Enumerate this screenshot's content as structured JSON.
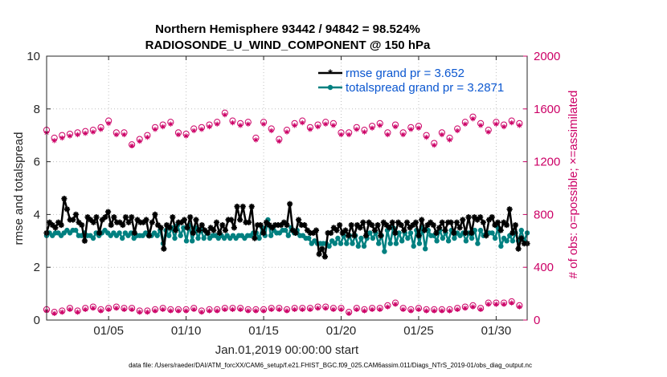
{
  "chart_data": {
    "type": "line",
    "title_line1": "Northern Hemisphere 93442 / 94842 = 98.524%",
    "title_line2": "RADIOSONDE_U_WIND_COMPONENT @ 150 hPa",
    "xlabel": "Jan.01,2019 00:00:00 start",
    "ylabel": "rmse and totalspread",
    "ylabel_right": "# of obs: o=possible; ×=assimilated",
    "xlim": [
      1,
      32
    ],
    "ylim": [
      0,
      10
    ],
    "ylim_right": [
      0,
      2000
    ],
    "x_ticks": [
      5,
      10,
      15,
      20,
      25,
      30
    ],
    "x_tick_labels": [
      "01/05",
      "01/10",
      "01/15",
      "01/20",
      "01/25",
      "01/30"
    ],
    "y_ticks": [
      "0",
      "2",
      "4",
      "6",
      "8",
      "10"
    ],
    "y_right_ticks": [
      "0",
      "400",
      "800",
      "1200",
      "1600",
      "2000"
    ],
    "colors": {
      "rmse": "#000000",
      "spread": "#008080",
      "obs": "#cc0066",
      "legend_text": "#0b57d0"
    },
    "legend": [
      {
        "name": "rmse",
        "label": "rmse grand pr = 3.652"
      },
      {
        "name": "spread",
        "label": "totalspread grand pr = 3.2871"
      }
    ],
    "series": [
      {
        "name": "rmse",
        "values": [
          3.3,
          3.7,
          3.6,
          3.5,
          3.7,
          3.6,
          4.6,
          4.2,
          3.8,
          3.8,
          4.0,
          3.7,
          3.6,
          3.0,
          3.9,
          3.8,
          3.7,
          3.9,
          3.3,
          3.8,
          3.9,
          4.1,
          3.6,
          3.9,
          3.7,
          3.7,
          3.6,
          3.9,
          3.7,
          3.9,
          3.3,
          3.8,
          3.7,
          3.7,
          3.8,
          3.2,
          3.7,
          4.0,
          3.6,
          3.5,
          2.7,
          3.6,
          3.5,
          3.9,
          3.4,
          3.7,
          3.7,
          3.8,
          3.5,
          3.9,
          3.3,
          3.8,
          3.4,
          3.6,
          3.4,
          3.3,
          3.5,
          3.4,
          3.7,
          3.3,
          3.6,
          3.4,
          3.8,
          3.8,
          3.5,
          4.3,
          3.8,
          4.3,
          3.7,
          3.7,
          4.3,
          3.1,
          3.6,
          3.6,
          3.3,
          3.7,
          3.6,
          3.5,
          3.6,
          3.6,
          3.6,
          3.7,
          3.6,
          4.4,
          3.4,
          3.3,
          3.8,
          3.6,
          3.6,
          3.4,
          3.3,
          3.3,
          3.4,
          2.5,
          2.7,
          2.4,
          3.3,
          3.3,
          3.5,
          3.4,
          3.6,
          3.3,
          3.4,
          3.2,
          3.6,
          3.2,
          3.6,
          3.5,
          3.7,
          3.2,
          3.7,
          3.6,
          3.4,
          3.6,
          3.2,
          3.7,
          3.6,
          3.5,
          3.7,
          3.3,
          3.7,
          3.6,
          3.4,
          3.7,
          3.5,
          3.6,
          3.7,
          3.2,
          3.8,
          3.4,
          3.6,
          3.7,
          3.6,
          3.3,
          3.5,
          3.7,
          3.4,
          3.7,
          3.7,
          3.3,
          3.7,
          3.5,
          3.8,
          3.3,
          3.9,
          3.3,
          3.9,
          3.8,
          3.9,
          3.7,
          3.2,
          3.8,
          3.9,
          3.6,
          3.7,
          3.4,
          3.7,
          3.6,
          4.2,
          3.3,
          3.6,
          2.7,
          3.1,
          2.9,
          2.9
        ]
      },
      {
        "name": "spread",
        "values": [
          3.2,
          3.3,
          3.2,
          3.3,
          3.3,
          3.2,
          3.3,
          3.4,
          3.3,
          3.4,
          3.4,
          3.2,
          3.2,
          3.3,
          3.2,
          3.2,
          3.1,
          3.3,
          3.2,
          3.3,
          3.4,
          3.3,
          3.2,
          3.3,
          3.2,
          3.3,
          3.1,
          3.3,
          3.2,
          3.3,
          3.1,
          3.2,
          3.2,
          3.2,
          3.3,
          3.2,
          3.2,
          3.3,
          3.2,
          3.4,
          2.9,
          3.4,
          3.2,
          3.5,
          3.1,
          3.6,
          3.2,
          3.5,
          3.0,
          3.6,
          3.0,
          3.5,
          3.1,
          3.4,
          3.1,
          3.3,
          3.1,
          3.2,
          3.2,
          3.1,
          3.2,
          3.1,
          3.2,
          3.1,
          3.2,
          3.1,
          3.2,
          3.2,
          3.1,
          3.2,
          3.2,
          3.3,
          3.3,
          3.1,
          3.5,
          3.2,
          3.8,
          3.2,
          3.4,
          3.3,
          3.3,
          3.4,
          3.4,
          3.2,
          3.5,
          3.3,
          3.4,
          3.2,
          3.2,
          3.1,
          3.1,
          2.9,
          3.0,
          2.9,
          2.9,
          2.9,
          2.9,
          2.8,
          3.0,
          2.9,
          3.1,
          2.9,
          3.2,
          2.9,
          3.2,
          2.9,
          3.2,
          2.8,
          3.1,
          2.8,
          3.1,
          3.3,
          3.1,
          3.3,
          2.9,
          3.2,
          2.6,
          3.4,
          2.9,
          3.5,
          2.9,
          3.3,
          3.0,
          3.3,
          3.1,
          3.3,
          2.8,
          3.4,
          2.9,
          3.5,
          2.7,
          3.4,
          3.2,
          3.2,
          3.0,
          3.4,
          3.1,
          3.3,
          3.0,
          3.4,
          3.1,
          3.3,
          3.2,
          3.3,
          3.0,
          3.3,
          3.1,
          3.4,
          2.9,
          3.4,
          3.2,
          3.3,
          3.3,
          3.3,
          3.1,
          3.5,
          2.8,
          3.1,
          3.0,
          3.2,
          3.0,
          3.3,
          3.0,
          3.4,
          3.0,
          3.3
        ]
      }
    ],
    "obs_times": [
      1.0,
      1.5,
      2.0,
      2.5,
      3.0,
      3.5,
      4.0,
      4.5,
      5.0,
      5.5,
      6.0,
      6.5,
      7.0,
      7.5,
      8.0,
      8.5,
      9.0,
      9.5,
      10.0,
      10.5,
      11.0,
      11.5,
      12.0,
      12.5,
      13.0,
      13.5,
      14.0,
      14.5,
      15.0,
      15.5,
      16.0,
      16.5,
      17.0,
      17.5,
      18.0,
      18.5,
      19.0,
      19.5,
      20.0,
      20.5,
      21.0,
      21.5,
      22.0,
      22.5,
      23.0,
      23.5,
      24.0,
      24.5,
      25.0,
      25.5,
      26.0,
      26.5,
      27.0,
      27.5,
      28.0,
      28.5,
      29.0,
      29.5,
      30.0,
      30.5,
      31.0,
      31.5
    ],
    "obs_possible_upper": [
      1440,
      1380,
      1400,
      1410,
      1420,
      1430,
      1440,
      1460,
      1510,
      1420,
      1420,
      1330,
      1370,
      1400,
      1460,
      1480,
      1500,
      1420,
      1410,
      1450,
      1460,
      1480,
      1500,
      1570,
      1510,
      1490,
      1500,
      1380,
      1500,
      1450,
      1370,
      1440,
      1490,
      1510,
      1460,
      1480,
      1500,
      1490,
      1420,
      1420,
      1460,
      1440,
      1470,
      1490,
      1420,
      1480,
      1420,
      1460,
      1470,
      1400,
      1340,
      1420,
      1380,
      1450,
      1500,
      1540,
      1490,
      1440,
      1500,
      1480,
      1510,
      1490
    ],
    "obs_assimilated_upper": [
      1420,
      1360,
      1380,
      1395,
      1405,
      1415,
      1425,
      1445,
      1490,
      1405,
      1405,
      1320,
      1355,
      1385,
      1445,
      1465,
      1485,
      1405,
      1395,
      1435,
      1445,
      1465,
      1485,
      1555,
      1495,
      1475,
      1485,
      1365,
      1485,
      1435,
      1355,
      1425,
      1475,
      1495,
      1445,
      1465,
      1485,
      1475,
      1405,
      1405,
      1445,
      1425,
      1455,
      1475,
      1405,
      1465,
      1405,
      1445,
      1455,
      1385,
      1325,
      1405,
      1365,
      1435,
      1485,
      1525,
      1475,
      1425,
      1485,
      1465,
      1495,
      1475
    ],
    "obs_possible_lower": [
      80,
      60,
      70,
      90,
      70,
      90,
      100,
      80,
      90,
      100,
      90,
      90,
      70,
      70,
      80,
      90,
      80,
      80,
      80,
      90,
      70,
      80,
      80,
      90,
      90,
      90,
      80,
      80,
      80,
      90,
      90,
      80,
      90,
      90,
      90,
      100,
      100,
      90,
      90,
      60,
      90,
      80,
      90,
      90,
      110,
      130,
      90,
      80,
      90,
      80,
      80,
      80,
      80,
      90,
      100,
      110,
      90,
      130,
      130,
      130,
      140,
      110
    ],
    "obs_assimilated_lower": [
      70,
      50,
      60,
      80,
      60,
      80,
      90,
      70,
      80,
      90,
      80,
      80,
      60,
      60,
      70,
      80,
      70,
      70,
      70,
      80,
      60,
      70,
      70,
      80,
      80,
      80,
      70,
      70,
      70,
      80,
      80,
      70,
      80,
      80,
      80,
      90,
      90,
      80,
      80,
      50,
      80,
      70,
      80,
      80,
      100,
      120,
      80,
      70,
      80,
      70,
      70,
      70,
      70,
      80,
      90,
      100,
      80,
      120,
      120,
      120,
      130,
      100
    ]
  },
  "footer": {
    "data_file": "data file: /Users/raeder/DAI/ATM_forcXX/CAM6_setup/f.e21.FHIST_BGC.f09_025.CAM6assim.011/Diags_NTrS_2019-01/obs_diag_output.nc"
  }
}
